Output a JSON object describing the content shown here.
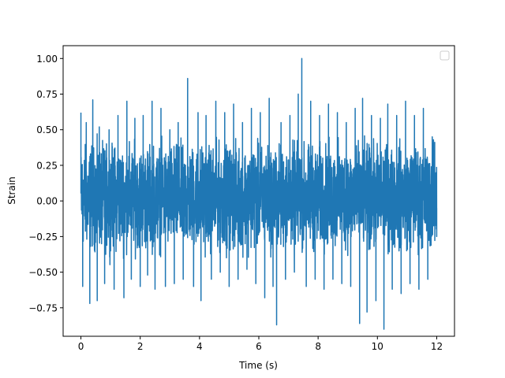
{
  "chart_data": {
    "type": "line",
    "xlabel": "Time (s)",
    "ylabel": "Strain",
    "xlim": [
      -0.6,
      12.6
    ],
    "ylim": [
      -0.95,
      1.09
    ],
    "x_ticks": [
      0,
      2,
      4,
      6,
      8,
      10,
      12
    ],
    "x_tick_labels": [
      "0",
      "2",
      "4",
      "6",
      "8",
      "10",
      "12"
    ],
    "y_ticks": [
      -0.75,
      -0.5,
      -0.25,
      0.0,
      0.25,
      0.5,
      0.75,
      1.0
    ],
    "y_tick_labels": [
      "−0.75",
      "−0.50",
      "−0.25",
      "0.00",
      "0.25",
      "0.50",
      "0.75",
      "1.00"
    ],
    "grid": false,
    "legend": {
      "placement": "upper-right",
      "entries": []
    },
    "series": [
      {
        "color": "#1f77b4",
        "x_range": [
          0,
          12
        ],
        "typical_band": [
          -0.45,
          0.5
        ],
        "x": [
          0.0,
          0.06,
          0.18,
          0.3,
          0.4,
          0.55,
          0.62,
          0.8,
          0.95,
          1.12,
          1.25,
          1.45,
          1.55,
          1.7,
          1.82,
          2.0,
          2.1,
          2.25,
          2.4,
          2.5,
          2.7,
          2.85,
          3.0,
          3.15,
          3.28,
          3.45,
          3.6,
          3.8,
          3.95,
          4.05,
          4.22,
          4.4,
          4.55,
          4.7,
          4.85,
          5.0,
          5.15,
          5.3,
          5.45,
          5.6,
          5.75,
          5.9,
          6.05,
          6.2,
          6.35,
          6.48,
          6.6,
          6.75,
          6.9,
          7.05,
          7.2,
          7.33,
          7.45,
          7.6,
          7.75,
          7.9,
          8.05,
          8.2,
          8.35,
          8.5,
          8.65,
          8.8,
          8.95,
          9.1,
          9.25,
          9.4,
          9.5,
          9.65,
          9.8,
          9.95,
          10.1,
          10.22,
          10.35,
          10.5,
          10.65,
          10.8,
          10.95,
          11.1,
          11.25,
          11.4,
          11.55,
          11.7,
          11.85,
          12.0
        ],
        "y": [
          0.62,
          -0.6,
          0.55,
          -0.72,
          0.71,
          -0.7,
          0.52,
          -0.58,
          0.5,
          -0.62,
          0.6,
          -0.68,
          0.7,
          -0.55,
          0.58,
          -0.6,
          0.6,
          -0.52,
          0.7,
          -0.62,
          0.65,
          -0.6,
          0.5,
          -0.58,
          0.55,
          -0.55,
          0.86,
          -0.6,
          0.62,
          -0.7,
          0.6,
          -0.55,
          0.7,
          -0.5,
          0.62,
          -0.6,
          0.68,
          -0.55,
          0.55,
          -0.48,
          0.65,
          -0.58,
          0.62,
          -0.68,
          0.72,
          -0.6,
          -0.87,
          0.55,
          -0.55,
          0.6,
          -0.5,
          0.75,
          1.0,
          -0.6,
          0.7,
          -0.55,
          0.6,
          -0.62,
          0.68,
          -0.55,
          0.62,
          -0.58,
          0.55,
          -0.6,
          0.65,
          -0.86,
          0.72,
          -0.78,
          0.6,
          -0.7,
          0.58,
          -0.9,
          0.68,
          -0.62,
          0.6,
          -0.65,
          0.7,
          -0.58,
          0.6,
          -0.62,
          0.65,
          -0.55,
          0.45,
          -0.25
        ]
      }
    ]
  }
}
